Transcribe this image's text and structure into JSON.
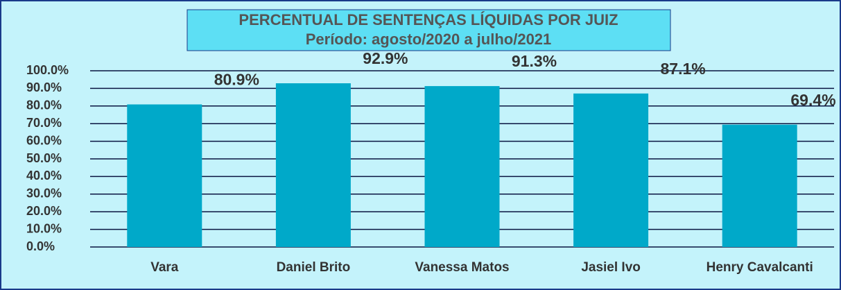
{
  "chart_data": {
    "type": "bar",
    "title": "PERCENTUAL DE SENTENÇAS LÍQUIDAS POR JUIZ",
    "subtitle": "Período: agosto/2020 a julho/2021",
    "categories": [
      "Vara",
      "Daniel Brito",
      "Vanessa Matos",
      "Jasiel Ivo",
      "Henry Cavalcanti"
    ],
    "values": [
      80.9,
      92.9,
      91.3,
      87.1,
      69.4
    ],
    "value_labels": [
      "80.9%",
      "92.9%",
      "91.3%",
      "87.1%",
      "69.4%"
    ],
    "color": "#00a9c9",
    "ylim": [
      0,
      100
    ],
    "yticks": [
      {
        "value": 0,
        "label": "0.0%"
      },
      {
        "value": 10,
        "label": "10.0%"
      },
      {
        "value": 20,
        "label": "20.0%"
      },
      {
        "value": 30,
        "label": "30.0%"
      },
      {
        "value": 40,
        "label": "40.0%"
      },
      {
        "value": 50,
        "label": "50.0%"
      },
      {
        "value": 60,
        "label": "60.0%"
      },
      {
        "value": 70,
        "label": "70.0%"
      },
      {
        "value": 80,
        "label": "80.0%"
      },
      {
        "value": 90,
        "label": "90.0%"
      },
      {
        "value": 100,
        "label": "100.0%"
      }
    ],
    "grid": true
  }
}
